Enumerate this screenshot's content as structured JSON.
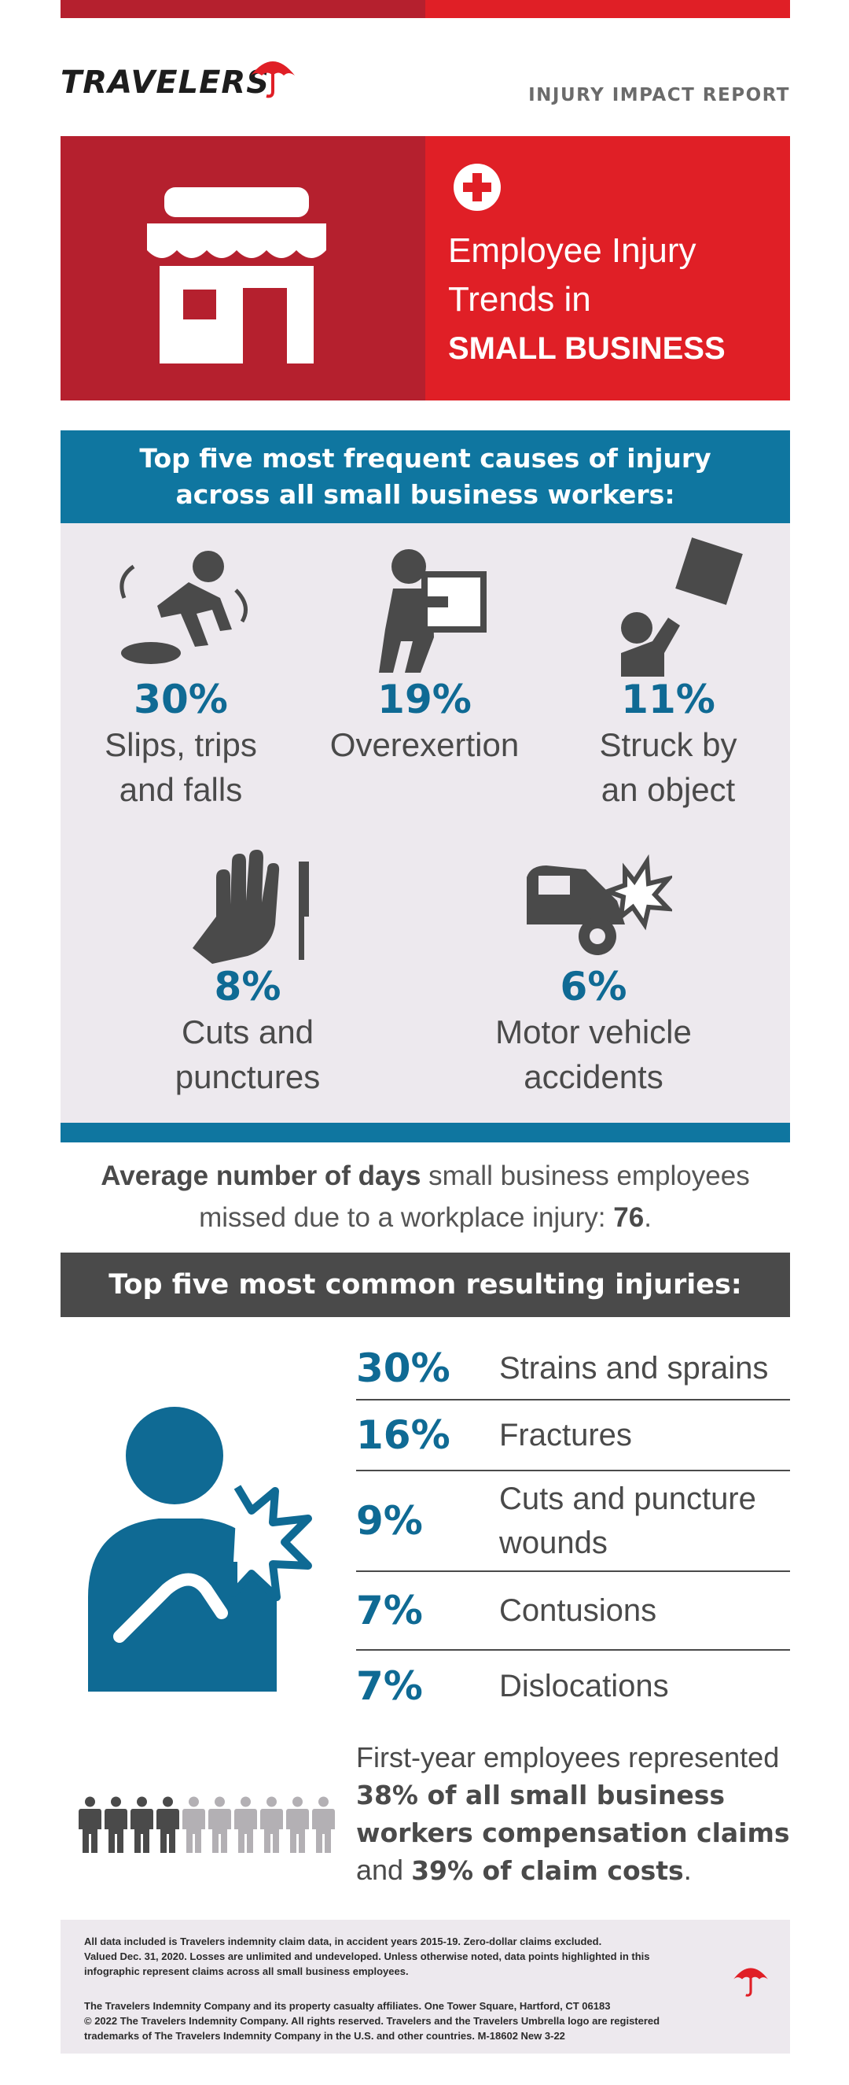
{
  "brand": {
    "name": "TRAVELERS",
    "report_label": "INJURY IMPACT REPORT",
    "colors": {
      "dark_red": "#b5202e",
      "red": "#e01f26",
      "blue": "#0f76a0",
      "charcoal": "#4a4a4a",
      "panel": "#ede9ee"
    }
  },
  "hero": {
    "line1": "Employee Injury",
    "line2": "Trends in",
    "line3": "SMALL BUSINESS",
    "icons": [
      "storefront-icon",
      "medical-plus-icon"
    ]
  },
  "causes": {
    "heading_line1": "Top five most frequent causes of injury",
    "heading_line2": "across all small business workers:",
    "items": [
      {
        "pct": "30%",
        "line1": "Slips, trips",
        "line2": "and falls",
        "icon": "slip-fall-icon",
        "value": 30
      },
      {
        "pct": "19%",
        "line1": "Overexertion",
        "line2": "",
        "icon": "lifting-box-icon",
        "value": 19
      },
      {
        "pct": "11%",
        "line1": "Struck by",
        "line2": "an object",
        "icon": "falling-box-icon",
        "value": 11
      },
      {
        "pct": "8%",
        "line1": "Cuts and",
        "line2": "punctures",
        "icon": "hand-knife-icon",
        "value": 8
      },
      {
        "pct": "6%",
        "line1": "Motor vehicle",
        "line2": "accidents",
        "icon": "car-crash-icon",
        "value": 6
      }
    ]
  },
  "average_days": {
    "bold_lead": "Average number of days",
    "text_a": " small business employees",
    "text_b": "missed due to a workplace injury: ",
    "value": "76",
    "end": "."
  },
  "injuries": {
    "heading": "Top five most common resulting injuries:",
    "icon": "shoulder-pain-icon",
    "items": [
      {
        "pct": "30%",
        "line1": "Strains and sprains",
        "line2": ""
      },
      {
        "pct": "16%",
        "line1": "Fractures",
        "line2": ""
      },
      {
        "pct": "9%",
        "line1": "Cuts and puncture",
        "line2": "wounds"
      },
      {
        "pct": "7%",
        "line1": "Contusions",
        "line2": ""
      },
      {
        "pct": "7%",
        "line1": "Dislocations",
        "line2": ""
      }
    ]
  },
  "first_year": {
    "text_a": "First-year employees represented",
    "bold_a": "38% of all small business",
    "bold_b": "workers compensation claims",
    "text_b": "and ",
    "bold_c": "39% of claim costs",
    "end": ".",
    "people_total": 10,
    "people_highlighted": 4
  },
  "footer": {
    "note1": "All data included is Travelers indemnity claim data, in accident years 2015-19. Zero-dollar claims excluded.",
    "note2": "Valued Dec. 31, 2020. Losses are unlimited and undeveloped. Unless otherwise noted, data points highlighted in this",
    "note3": "infographic represent claims across all small business employees.",
    "legal1": "The Travelers Indemnity Company and its property casualty affiliates. One Tower Square, Hartford, CT 06183",
    "legal2": "© 2022 The Travelers Indemnity Company. All rights reserved. Travelers and the Travelers Umbrella logo are registered",
    "legal3": "trademarks of The Travelers Indemnity Company in the U.S. and other countries. M-18602 New 3-22"
  }
}
